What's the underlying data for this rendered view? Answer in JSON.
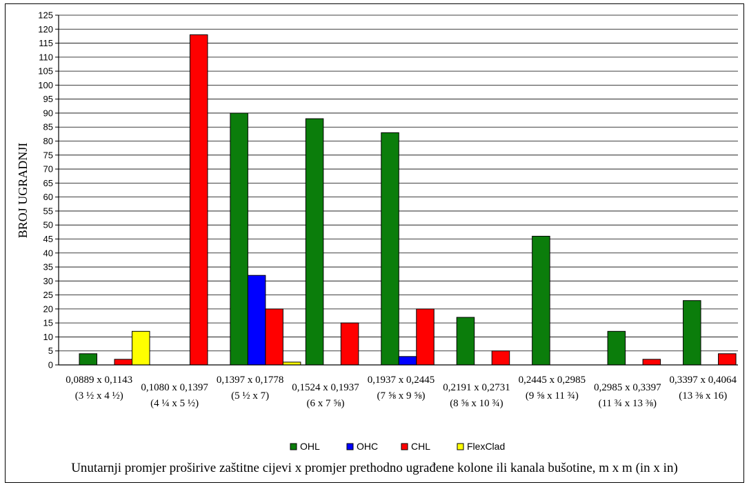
{
  "chart_data": {
    "type": "bar",
    "ylabel": "BROJ UGRADNJI",
    "xlabel": "Unutarnji promjer proširive zaštitne cijevi x promjer prethodno ugrađene kolone ili kanala bušotine, m x m (in x in)",
    "ylim": [
      0,
      125
    ],
    "ytick_step": 5,
    "grid": true,
    "legend_position": "bottom",
    "categories": [
      {
        "metric": "0,0889 x 0,1143",
        "imperial": "(3 ½ x 4 ½)"
      },
      {
        "metric": "0,1080 x 0,1397",
        "imperial": "(4 ¼ x 5 ½)"
      },
      {
        "metric": "0,1397 x 0,1778",
        "imperial": "(5 ½ x 7)"
      },
      {
        "metric": "0,1524 x 0,1937",
        "imperial": "(6 x 7 ⅝)"
      },
      {
        "metric": "0,1937 x 0,2445",
        "imperial": "(7 ⅝ x 9 ⅝)"
      },
      {
        "metric": "0,2191 x 0,2731",
        "imperial": "(8 ⅝ x 10 ¾)"
      },
      {
        "metric": "0,2445 x 0,2985",
        "imperial": "(9 ⅝ x 11 ¾)"
      },
      {
        "metric": "0,2985 x 0,3397",
        "imperial": "(11 ¾ x 13 ⅜)"
      },
      {
        "metric": "0,3397 x 0,4064",
        "imperial": "(13 ⅜ x 16)"
      }
    ],
    "series": [
      {
        "name": "OHL",
        "color": "#0b7d0b",
        "values": [
          4,
          0,
          90,
          88,
          83,
          17,
          46,
          12,
          23
        ]
      },
      {
        "name": "OHC",
        "color": "#0000ff",
        "values": [
          0,
          0,
          32,
          0,
          3,
          0,
          0,
          0,
          0
        ]
      },
      {
        "name": "CHL",
        "color": "#ff0000",
        "values": [
          2,
          118,
          20,
          15,
          20,
          5,
          0,
          2,
          4
        ]
      },
      {
        "name": "FlexClad",
        "color": "#ffff00",
        "values": [
          12,
          0,
          1,
          0,
          0,
          0,
          0,
          0,
          0
        ]
      }
    ]
  }
}
